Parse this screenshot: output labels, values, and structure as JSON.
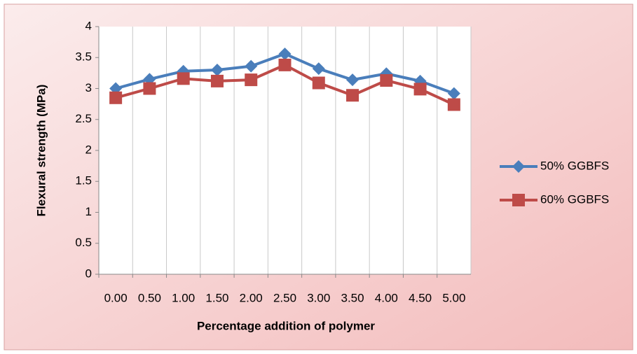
{
  "chart_data": {
    "type": "line",
    "x_label": "Percentage addition of polymer",
    "y_label": "Flexural strength (MPa)",
    "categories": [
      "0.00",
      "0.50",
      "1.00",
      "1.50",
      "2.00",
      "2.50",
      "3.00",
      "3.50",
      "4.00",
      "4.50",
      "5.00"
    ],
    "series": [
      {
        "name": "50% GGBFS",
        "color": "#4a7ebb",
        "marker": "diamond",
        "values": [
          3.0,
          3.15,
          3.28,
          3.3,
          3.36,
          3.56,
          3.32,
          3.14,
          3.24,
          3.12,
          2.92
        ]
      },
      {
        "name": "60% GGBFS",
        "color": "#be4b48",
        "marker": "square",
        "values": [
          2.85,
          3.0,
          3.16,
          3.12,
          3.14,
          3.38,
          3.09,
          2.89,
          3.13,
          2.99,
          2.74
        ]
      }
    ],
    "ylim": [
      0,
      4
    ],
    "yticks": [
      0,
      0.5,
      1,
      1.5,
      2,
      2.5,
      3,
      3.5,
      4
    ],
    "grid": true,
    "legend": "right"
  }
}
